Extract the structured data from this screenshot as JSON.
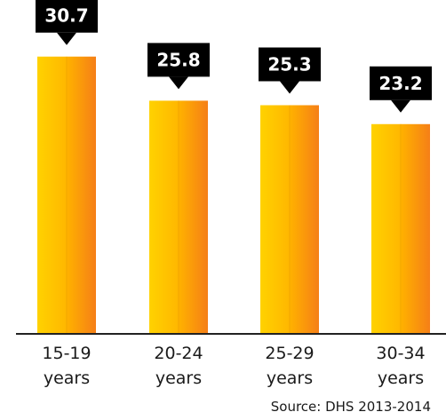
{
  "chart_data": {
    "type": "bar",
    "categories": [
      [
        "15-19",
        "years"
      ],
      [
        "20-24",
        "years"
      ],
      [
        "25-29",
        "years"
      ],
      [
        "30-34",
        "years"
      ]
    ],
    "values": [
      30.7,
      25.8,
      25.3,
      23.2
    ],
    "value_labels": [
      "30.7",
      "25.8",
      "25.3",
      "23.2"
    ],
    "ylim": [
      0,
      36
    ],
    "grid": false,
    "legend": "none",
    "colors": {
      "bar_light": "#FFCC00",
      "bar_mid": "#FFB300",
      "bar_dark": "#F57F17",
      "callout": "#000000",
      "axis": "#222222"
    }
  },
  "source": "Source: DHS 2013-2014"
}
